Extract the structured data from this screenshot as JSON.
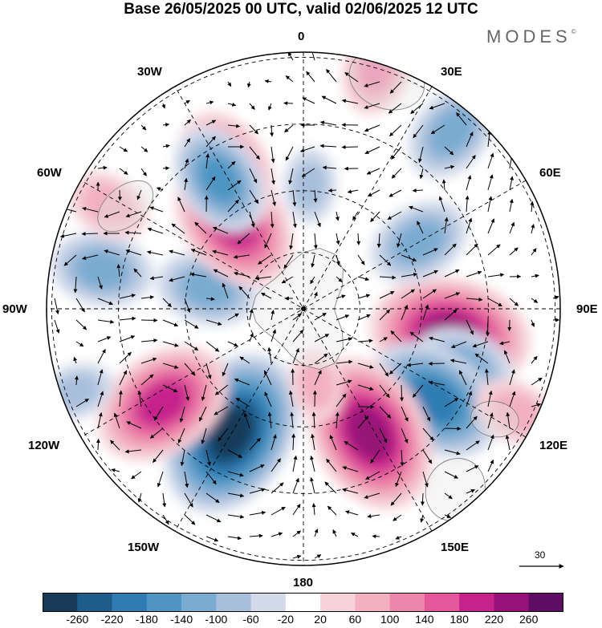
{
  "header": {
    "title": "Base 26/05/2025 00 UTC, valid 02/06/2025 12 UTC",
    "brand": "MODES",
    "brand_mark": "©"
  },
  "map": {
    "projection": "south-polar-stereographic",
    "longitude_labels": {
      "lon_0": "0",
      "lon_30e": "30E",
      "lon_60e": "60E",
      "lon_90e": "90E",
      "lon_120e": "120E",
      "lon_150e": "150E",
      "lon_180": "180",
      "lon_150w": "150W",
      "lon_120w": "120W",
      "lon_90w": "90W",
      "lon_60w": "60W",
      "lon_30w": "30W"
    },
    "vector_reference": {
      "label": "30",
      "value": 30
    },
    "anomaly_centers": [
      {
        "lon": 100,
        "r": 0.58,
        "value": 240
      },
      {
        "lon": 60,
        "r": 0.52,
        "value": -120
      },
      {
        "lon": 40,
        "r": 0.9,
        "value": -120
      },
      {
        "lon": 110,
        "r": 0.66,
        "value": -120
      },
      {
        "lon": 125,
        "r": 0.62,
        "value": -200
      },
      {
        "lon": 152,
        "r": 0.55,
        "value": 240
      },
      {
        "lon": 210,
        "r": 0.56,
        "value": -260
      },
      {
        "lon": 236,
        "r": 0.66,
        "value": 200
      },
      {
        "lon": 281,
        "r": 0.8,
        "value": -120
      },
      {
        "lon": 282,
        "r": 0.38,
        "value": -120
      },
      {
        "lon": 321,
        "r": 0.43,
        "value": 200
      },
      {
        "lon": 331,
        "r": 0.62,
        "value": 160
      },
      {
        "lon": 327,
        "r": 0.6,
        "value": -140
      },
      {
        "lon": 17,
        "r": 0.98,
        "value": 100
      },
      {
        "lon": 116,
        "r": 0.92,
        "value": 80
      },
      {
        "lon": 298,
        "r": 0.86,
        "value": 80
      },
      {
        "lon": 3,
        "r": 0.48,
        "value": -60
      },
      {
        "lon": 170,
        "r": 0.3,
        "value": 60
      },
      {
        "lon": 250,
        "r": 0.94,
        "value": -60
      }
    ]
  },
  "colorbar": {
    "ticks": [
      "-260",
      "-220",
      "-180",
      "-140",
      "-100",
      "-60",
      "-20",
      "20",
      "60",
      "100",
      "140",
      "180",
      "220",
      "260"
    ],
    "colors": [
      "#163a58",
      "#1e5c8a",
      "#2f7bb2",
      "#4e95c3",
      "#7aabd1",
      "#a8bfdc",
      "#d3dbeb",
      "#ffffff",
      "#f6d3da",
      "#f2b0c1",
      "#ec86aa",
      "#e2589a",
      "#c5238b",
      "#961278",
      "#5e0d63"
    ]
  }
}
